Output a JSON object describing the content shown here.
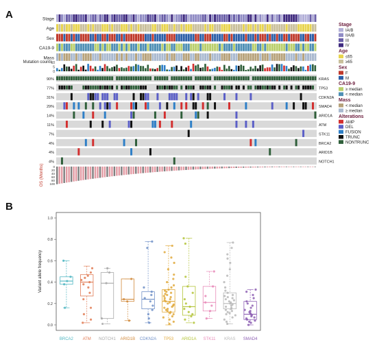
{
  "panels": {
    "a_label": "A",
    "b_label": "B"
  },
  "legend": {
    "groups": [
      {
        "title": "Stage",
        "entries": [
          {
            "label": "IA/B",
            "color": "#b3b0d8"
          },
          {
            "label": "IIA/B",
            "color": "#8f8bc4"
          },
          {
            "label": "III",
            "color": "#6a5fa8"
          },
          {
            "label": "IV",
            "color": "#3f2a7f"
          }
        ]
      },
      {
        "title": "Age",
        "entries": [
          {
            "label": "≤65",
            "color": "#e8d44d"
          },
          {
            "label": "≥65",
            "color": "#c9bf9b"
          }
        ]
      },
      {
        "title": "Sex",
        "entries": [
          {
            "label": "F",
            "color": "#c0392b"
          },
          {
            "label": "M",
            "color": "#2c5fa8"
          }
        ]
      },
      {
        "title": "CA19-9",
        "entries": [
          {
            "label": "≥ median",
            "color": "#b9cf6a"
          },
          {
            "label": "< median",
            "color": "#4e8fb5"
          }
        ]
      },
      {
        "title": "Mass",
        "entries": [
          {
            "label": "< median",
            "color": "#b7a27a"
          },
          {
            "label": "≥ median",
            "color": "#a9b9cf"
          }
        ]
      },
      {
        "title": "Alterations",
        "entries": [
          {
            "label": "AMP",
            "color": "#d32f2f"
          },
          {
            "label": "DEL",
            "color": "#5b5fc7"
          },
          {
            "label": "FUSION",
            "color": "#2e7fc7"
          },
          {
            "label": "TRUNC",
            "color": "#111111"
          },
          {
            "label": "NONTRUNC",
            "color": "#2f5f3a"
          }
        ]
      }
    ]
  },
  "chart_data": [
    {
      "type": "heatmap",
      "panel": "A",
      "n_samples": 109,
      "clinical_tracks": [
        "Stage",
        "Age",
        "Sex",
        "CA19-9",
        "Mass"
      ],
      "mutation_counts_label": "Mutation counts",
      "mutation_counts_ticks": [
        "10",
        "5",
        "0"
      ],
      "genes": [
        {
          "name": "KRAS",
          "pct": "90%"
        },
        {
          "name": "TP53",
          "pct": "77%"
        },
        {
          "name": "CDKN2A",
          "pct": "31%"
        },
        {
          "name": "SMAD4",
          "pct": "29%"
        },
        {
          "name": "ARID1A",
          "pct": "14%"
        },
        {
          "name": "ATM",
          "pct": "11%"
        },
        {
          "name": "STK11",
          "pct": "7%"
        },
        {
          "name": "BRCA2",
          "pct": "4%"
        },
        {
          "name": "ARID1B",
          "pct": "4%"
        },
        {
          "name": "NOTCH1",
          "pct": "4%"
        }
      ],
      "os_label": "OS (Months)",
      "os_ticks": [
        "0",
        "20",
        "40",
        "60",
        "80",
        "100"
      ],
      "os_range": [
        0,
        100
      ]
    },
    {
      "type": "box",
      "panel": "B",
      "ylabel": "Variant allele frequency",
      "ylim": [
        0,
        1.0
      ],
      "yticks": [
        "0.0",
        "0.2",
        "0.4",
        "0.6",
        "0.8",
        "1.0"
      ],
      "categories": [
        "BRCA2",
        "ATM",
        "NOTCH1",
        "ARID1B",
        "CDKN2A",
        "TP53",
        "ARID1A",
        "STK11",
        "KRAS",
        "SMAD4"
      ],
      "colors": [
        "#4fb6c2",
        "#e07b54",
        "#a9a9a9",
        "#d18a3c",
        "#6f8fc7",
        "#e0a93c",
        "#b4c43a",
        "#e88ab8",
        "#b8b8b8",
        "#8d5fb3"
      ],
      "boxes": [
        {
          "q1": 0.38,
          "median": 0.41,
          "q3": 0.45,
          "lo": 0.16,
          "hi": 0.6,
          "points": [
            0.16,
            0.38,
            0.41,
            0.45,
            0.6
          ]
        },
        {
          "q1": 0.27,
          "median": 0.4,
          "q3": 0.47,
          "lo": 0.02,
          "hi": 0.55,
          "points": [
            0.02,
            0.05,
            0.1,
            0.16,
            0.24,
            0.3,
            0.35,
            0.38,
            0.4,
            0.42,
            0.44,
            0.46,
            0.49,
            0.53
          ]
        },
        {
          "q1": 0.06,
          "median": 0.39,
          "q3": 0.49,
          "lo": 0.01,
          "hi": 0.53,
          "points": [
            0.01,
            0.06,
            0.39,
            0.49,
            0.53
          ]
        },
        {
          "q1": 0.22,
          "median": 0.24,
          "q3": 0.43,
          "lo": 0.04,
          "hi": 0.43,
          "points": [
            0.04,
            0.22,
            0.24,
            0.43
          ]
        },
        {
          "q1": 0.15,
          "median": 0.24,
          "q3": 0.31,
          "lo": 0.02,
          "hi": 0.78,
          "points": [
            0.02,
            0.06,
            0.1,
            0.14,
            0.18,
            0.22,
            0.25,
            0.28,
            0.31,
            0.35,
            0.72,
            0.78
          ]
        },
        {
          "q1": 0.12,
          "median": 0.22,
          "q3": 0.33,
          "lo": 0.0,
          "hi": 0.74,
          "points": [
            0.01,
            0.03,
            0.05,
            0.07,
            0.08,
            0.1,
            0.11,
            0.12,
            0.13,
            0.14,
            0.15,
            0.16,
            0.17,
            0.18,
            0.19,
            0.2,
            0.21,
            0.22,
            0.23,
            0.24,
            0.25,
            0.26,
            0.27,
            0.28,
            0.29,
            0.3,
            0.31,
            0.32,
            0.33,
            0.35,
            0.37,
            0.4,
            0.43,
            0.47,
            0.52,
            0.58,
            0.63,
            0.68,
            0.74
          ]
        },
        {
          "q1": 0.09,
          "median": 0.17,
          "q3": 0.36,
          "lo": 0.02,
          "hi": 0.81,
          "points": [
            0.02,
            0.05,
            0.08,
            0.1,
            0.12,
            0.15,
            0.17,
            0.2,
            0.24,
            0.3,
            0.36,
            0.45,
            0.76,
            0.81
          ]
        },
        {
          "q1": 0.13,
          "median": 0.21,
          "q3": 0.36,
          "lo": 0.06,
          "hi": 0.5,
          "points": [
            0.06,
            0.13,
            0.18,
            0.21,
            0.27,
            0.36,
            0.5
          ]
        },
        {
          "q1": 0.15,
          "median": 0.2,
          "q3": 0.3,
          "lo": 0.01,
          "hi": 0.77,
          "points": [
            0.01,
            0.03,
            0.05,
            0.07,
            0.09,
            0.1,
            0.11,
            0.12,
            0.13,
            0.14,
            0.15,
            0.16,
            0.17,
            0.18,
            0.19,
            0.2,
            0.21,
            0.22,
            0.23,
            0.24,
            0.25,
            0.26,
            0.27,
            0.28,
            0.3,
            0.32,
            0.35,
            0.4,
            0.46,
            0.52,
            0.58,
            0.62,
            0.66,
            0.72,
            0.77
          ]
        },
        {
          "q1": 0.05,
          "median": 0.1,
          "q3": 0.22,
          "lo": 0.0,
          "hi": 0.33,
          "points": [
            0.0,
            0.02,
            0.03,
            0.04,
            0.05,
            0.06,
            0.07,
            0.08,
            0.09,
            0.1,
            0.11,
            0.12,
            0.13,
            0.14,
            0.16,
            0.18,
            0.2,
            0.22,
            0.25,
            0.28,
            0.31,
            0.33
          ]
        }
      ]
    }
  ]
}
